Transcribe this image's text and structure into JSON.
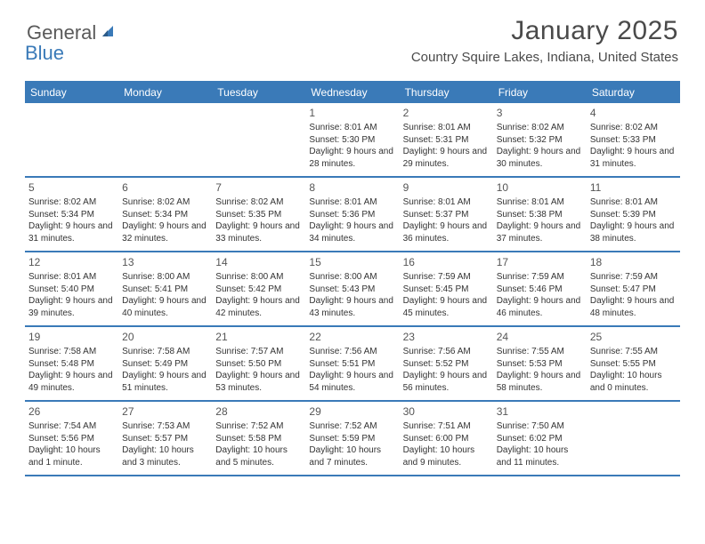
{
  "logo": {
    "part1": "General",
    "part2": "Blue"
  },
  "title": "January 2025",
  "location": "Country Squire Lakes, Indiana, United States",
  "colors": {
    "accent": "#3a7ab8",
    "text": "#333333",
    "logo_gray": "#5a5a5a",
    "logo_blue": "#3a7ab8",
    "background": "#ffffff"
  },
  "dayNames": [
    "Sunday",
    "Monday",
    "Tuesday",
    "Wednesday",
    "Thursday",
    "Friday",
    "Saturday"
  ],
  "weeks": [
    [
      null,
      null,
      null,
      {
        "day": "1",
        "sunrise": "8:01 AM",
        "sunset": "5:30 PM",
        "daylight": "9 hours and 28 minutes."
      },
      {
        "day": "2",
        "sunrise": "8:01 AM",
        "sunset": "5:31 PM",
        "daylight": "9 hours and 29 minutes."
      },
      {
        "day": "3",
        "sunrise": "8:02 AM",
        "sunset": "5:32 PM",
        "daylight": "9 hours and 30 minutes."
      },
      {
        "day": "4",
        "sunrise": "8:02 AM",
        "sunset": "5:33 PM",
        "daylight": "9 hours and 31 minutes."
      }
    ],
    [
      {
        "day": "5",
        "sunrise": "8:02 AM",
        "sunset": "5:34 PM",
        "daylight": "9 hours and 31 minutes."
      },
      {
        "day": "6",
        "sunrise": "8:02 AM",
        "sunset": "5:34 PM",
        "daylight": "9 hours and 32 minutes."
      },
      {
        "day": "7",
        "sunrise": "8:02 AM",
        "sunset": "5:35 PM",
        "daylight": "9 hours and 33 minutes."
      },
      {
        "day": "8",
        "sunrise": "8:01 AM",
        "sunset": "5:36 PM",
        "daylight": "9 hours and 34 minutes."
      },
      {
        "day": "9",
        "sunrise": "8:01 AM",
        "sunset": "5:37 PM",
        "daylight": "9 hours and 36 minutes."
      },
      {
        "day": "10",
        "sunrise": "8:01 AM",
        "sunset": "5:38 PM",
        "daylight": "9 hours and 37 minutes."
      },
      {
        "day": "11",
        "sunrise": "8:01 AM",
        "sunset": "5:39 PM",
        "daylight": "9 hours and 38 minutes."
      }
    ],
    [
      {
        "day": "12",
        "sunrise": "8:01 AM",
        "sunset": "5:40 PM",
        "daylight": "9 hours and 39 minutes."
      },
      {
        "day": "13",
        "sunrise": "8:00 AM",
        "sunset": "5:41 PM",
        "daylight": "9 hours and 40 minutes."
      },
      {
        "day": "14",
        "sunrise": "8:00 AM",
        "sunset": "5:42 PM",
        "daylight": "9 hours and 42 minutes."
      },
      {
        "day": "15",
        "sunrise": "8:00 AM",
        "sunset": "5:43 PM",
        "daylight": "9 hours and 43 minutes."
      },
      {
        "day": "16",
        "sunrise": "7:59 AM",
        "sunset": "5:45 PM",
        "daylight": "9 hours and 45 minutes."
      },
      {
        "day": "17",
        "sunrise": "7:59 AM",
        "sunset": "5:46 PM",
        "daylight": "9 hours and 46 minutes."
      },
      {
        "day": "18",
        "sunrise": "7:59 AM",
        "sunset": "5:47 PM",
        "daylight": "9 hours and 48 minutes."
      }
    ],
    [
      {
        "day": "19",
        "sunrise": "7:58 AM",
        "sunset": "5:48 PM",
        "daylight": "9 hours and 49 minutes."
      },
      {
        "day": "20",
        "sunrise": "7:58 AM",
        "sunset": "5:49 PM",
        "daylight": "9 hours and 51 minutes."
      },
      {
        "day": "21",
        "sunrise": "7:57 AM",
        "sunset": "5:50 PM",
        "daylight": "9 hours and 53 minutes."
      },
      {
        "day": "22",
        "sunrise": "7:56 AM",
        "sunset": "5:51 PM",
        "daylight": "9 hours and 54 minutes."
      },
      {
        "day": "23",
        "sunrise": "7:56 AM",
        "sunset": "5:52 PM",
        "daylight": "9 hours and 56 minutes."
      },
      {
        "day": "24",
        "sunrise": "7:55 AM",
        "sunset": "5:53 PM",
        "daylight": "9 hours and 58 minutes."
      },
      {
        "day": "25",
        "sunrise": "7:55 AM",
        "sunset": "5:55 PM",
        "daylight": "10 hours and 0 minutes."
      }
    ],
    [
      {
        "day": "26",
        "sunrise": "7:54 AM",
        "sunset": "5:56 PM",
        "daylight": "10 hours and 1 minute."
      },
      {
        "day": "27",
        "sunrise": "7:53 AM",
        "sunset": "5:57 PM",
        "daylight": "10 hours and 3 minutes."
      },
      {
        "day": "28",
        "sunrise": "7:52 AM",
        "sunset": "5:58 PM",
        "daylight": "10 hours and 5 minutes."
      },
      {
        "day": "29",
        "sunrise": "7:52 AM",
        "sunset": "5:59 PM",
        "daylight": "10 hours and 7 minutes."
      },
      {
        "day": "30",
        "sunrise": "7:51 AM",
        "sunset": "6:00 PM",
        "daylight": "10 hours and 9 minutes."
      },
      {
        "day": "31",
        "sunrise": "7:50 AM",
        "sunset": "6:02 PM",
        "daylight": "10 hours and 11 minutes."
      },
      null
    ]
  ],
  "labels": {
    "sunrise": "Sunrise:",
    "sunset": "Sunset:",
    "daylight": "Daylight:"
  }
}
